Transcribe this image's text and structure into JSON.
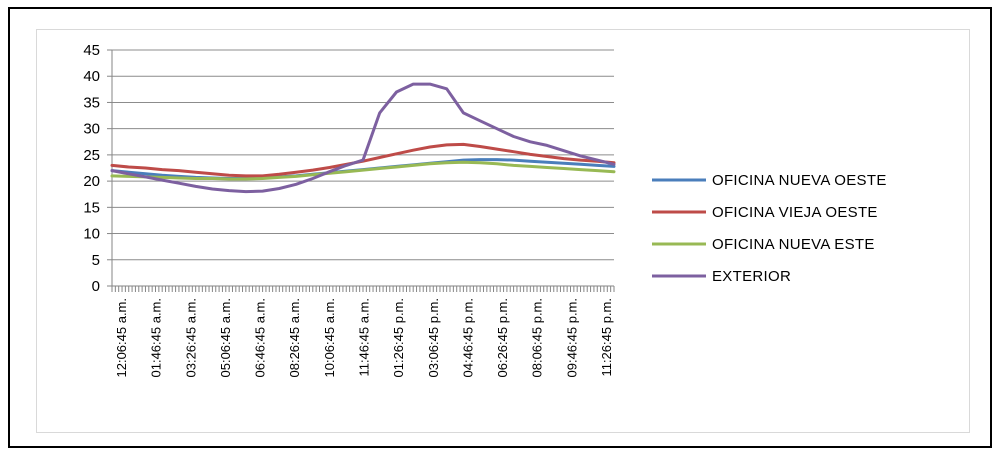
{
  "chart_data": {
    "type": "line",
    "title": "",
    "xlabel": "",
    "ylabel": "",
    "ylim": [
      0,
      45
    ],
    "yticks": [
      0,
      5,
      10,
      15,
      20,
      25,
      30,
      35,
      40,
      45
    ],
    "grid": true,
    "legend_position": "right",
    "x_tick_labels": [
      "12:06:45 a.m.",
      "01:46:45 a.m.",
      "03:26:45 a.m.",
      "05:06:45 a.m.",
      "06:46:45 a.m.",
      "08:26:45 a.m.",
      "10:06:45 a.m.",
      "11:46:45 a.m.",
      "01:26:45 p.m.",
      "03:06:45 p.m.",
      "04:46:45 p.m.",
      "06:26:45 p.m.",
      "08:06:45 p.m.",
      "09:46:45 p.m.",
      "11:26:45 p.m."
    ],
    "series": [
      {
        "name": "OFICINA NUEVA  OESTE",
        "color": "#4a7ebb",
        "values": [
          22.0,
          21.7,
          21.4,
          21.1,
          20.9,
          20.7,
          20.6,
          20.5,
          20.5,
          20.6,
          20.8,
          21.0,
          21.3,
          21.6,
          21.9,
          22.2,
          22.5,
          22.8,
          23.1,
          23.4,
          23.7,
          24.0,
          24.1,
          24.1,
          24.0,
          23.8,
          23.6,
          23.4,
          23.2,
          23.0,
          22.8
        ]
      },
      {
        "name": "OFICINA VIEJA  OESTE",
        "color": "#be4b48",
        "values": [
          23.0,
          22.7,
          22.5,
          22.2,
          22.0,
          21.7,
          21.4,
          21.1,
          21.0,
          21.0,
          21.3,
          21.7,
          22.1,
          22.6,
          23.2,
          23.8,
          24.5,
          25.2,
          25.9,
          26.5,
          26.9,
          27.0,
          26.6,
          26.1,
          25.6,
          25.1,
          24.7,
          24.3,
          24.0,
          23.8,
          23.5
        ]
      },
      {
        "name": "OFICINA NUEVA  ESTE",
        "color": "#98b954",
        "values": [
          21.0,
          20.9,
          20.8,
          20.7,
          20.6,
          20.5,
          20.5,
          20.4,
          20.4,
          20.5,
          20.7,
          20.9,
          21.2,
          21.5,
          21.8,
          22.1,
          22.4,
          22.7,
          23.0,
          23.3,
          23.5,
          23.6,
          23.5,
          23.3,
          23.0,
          22.8,
          22.6,
          22.4,
          22.2,
          22.0,
          21.8
        ]
      },
      {
        "name": "EXTERIOR",
        "color": "#7d60a0",
        "values": [
          22.0,
          21.4,
          20.8,
          20.2,
          19.6,
          19.0,
          18.5,
          18.2,
          18.0,
          18.1,
          18.6,
          19.4,
          20.5,
          21.8,
          23.0,
          24.0,
          33.0,
          37.0,
          38.5,
          38.5,
          37.6,
          33.0,
          31.5,
          30.0,
          28.5,
          27.5,
          26.8,
          25.8,
          24.8,
          24.0,
          23.2
        ]
      }
    ]
  }
}
